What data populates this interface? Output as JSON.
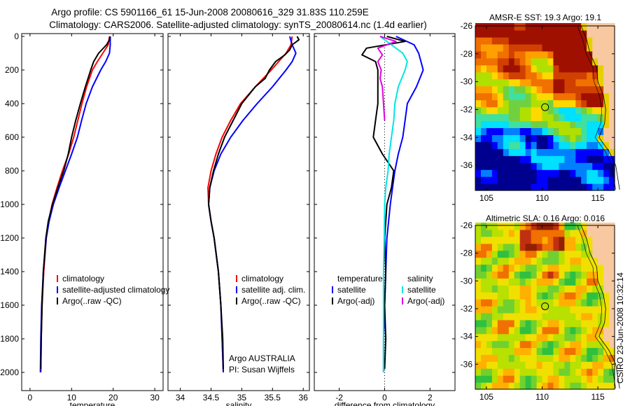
{
  "header": {
    "line1": "Argo profile: CS 5901166_61 15-Jun-2008 20080616_329 31.83S 110.259E",
    "line2": "Climatology: CARS2006. Satellite-adjusted climatology: synTS_20080614.nc (1.4d earlier)"
  },
  "credit": "CSIRO 23-Jun-2008 10:32:14",
  "colors": {
    "climatology": "#ff0000",
    "satellite": "#0000ff",
    "argo": "#000000",
    "sat_salinity": "#00e5e5",
    "argo_salinity": "#e000e0"
  },
  "chart_data": [
    {
      "type": "line",
      "xlabel": "temperature",
      "ylim": [
        2050,
        0
      ],
      "xlim": [
        -2,
        32
      ],
      "xticks": [
        0,
        10,
        20,
        30
      ],
      "yticks": [
        0,
        200,
        400,
        600,
        800,
        1000,
        1200,
        1400,
        1600,
        1800,
        2000
      ],
      "legend": [
        "climatology",
        "satellite-adjusted climatology",
        "Argo(..raw -QC)"
      ],
      "series": [
        {
          "name": "climatology",
          "color": "#ff0000",
          "depth": [
            0,
            50,
            100,
            150,
            200,
            300,
            400,
            500,
            600,
            700,
            800,
            900,
            1000,
            1100,
            1200,
            1400,
            1600,
            1800,
            2000
          ],
          "values": [
            19.1,
            18.8,
            17.5,
            16.2,
            15.0,
            13.6,
            12.5,
            11.5,
            10.5,
            9.3,
            7.8,
            6.5,
            5.3,
            4.5,
            3.9,
            3.3,
            2.9,
            2.7,
            2.6
          ]
        },
        {
          "name": "satellite-adjusted climatology",
          "color": "#0000ff",
          "depth": [
            0,
            50,
            100,
            150,
            200,
            300,
            400,
            500,
            600,
            700,
            800,
            900,
            1000,
            1100,
            1200,
            1400,
            1600,
            1800,
            2000
          ],
          "values": [
            19.3,
            19.3,
            19.1,
            18.2,
            17.0,
            15.0,
            13.5,
            12.4,
            11.4,
            10.0,
            8.5,
            7.0,
            5.6,
            4.6,
            3.9,
            3.2,
            2.8,
            2.6,
            2.5
          ]
        },
        {
          "name": "Argo(..raw -QC)",
          "color": "#000000",
          "depth": [
            0,
            20,
            50,
            100,
            150,
            200,
            300,
            400,
            500,
            600,
            700,
            800,
            900,
            1000,
            1100,
            1200,
            1400,
            1600,
            1800,
            1980
          ],
          "values": [
            19.2,
            19.1,
            18.4,
            16.5,
            15.3,
            14.6,
            13.3,
            12.1,
            11.0,
            10.0,
            9.2,
            8.1,
            6.7,
            5.4,
            4.4,
            3.8,
            3.2,
            2.9,
            2.7,
            2.6
          ]
        }
      ]
    },
    {
      "type": "line",
      "xlabel": "salinity",
      "ylim": [
        2050,
        0
      ],
      "xlim": [
        33.8,
        36.1
      ],
      "xticks": [
        34,
        34.5,
        35,
        35.5,
        36
      ],
      "legend": [
        "climatology",
        "satellite adj. clim.",
        "Argo(..raw -QC)"
      ],
      "annotation": [
        "Argo AUSTRALIA",
        "PI: Susan Wijffels"
      ],
      "series": [
        {
          "name": "climatology",
          "color": "#ff0000",
          "depth": [
            0,
            50,
            100,
            150,
            200,
            300,
            400,
            500,
            600,
            700,
            800,
            900,
            1000,
            1100,
            1200,
            1400,
            1600,
            1800,
            2000
          ],
          "values": [
            35.82,
            35.8,
            35.72,
            35.6,
            35.48,
            35.22,
            34.98,
            34.82,
            34.68,
            34.58,
            34.5,
            34.45,
            34.46,
            34.5,
            34.55,
            34.62,
            34.66,
            34.68,
            34.7
          ]
        },
        {
          "name": "satellite adj. clim.",
          "color": "#0000ff",
          "depth": [
            0,
            50,
            100,
            150,
            200,
            300,
            400,
            500,
            600,
            700,
            800,
            900,
            1000,
            1100,
            1200,
            1400,
            1600,
            1800,
            2000
          ],
          "values": [
            35.78,
            35.82,
            35.88,
            35.82,
            35.72,
            35.5,
            35.25,
            35.02,
            34.82,
            34.66,
            34.55,
            34.48,
            34.46,
            34.5,
            34.55,
            34.62,
            34.66,
            34.68,
            34.7
          ]
        },
        {
          "name": "Argo(..raw -QC)",
          "color": "#000000",
          "depth": [
            0,
            20,
            50,
            80,
            110,
            150,
            200,
            250,
            300,
            400,
            500,
            600,
            700,
            800,
            900,
            1000,
            1100,
            1200,
            1400,
            1600,
            1800,
            1980
          ],
          "values": [
            35.9,
            35.93,
            35.82,
            35.78,
            35.7,
            35.55,
            35.45,
            35.38,
            35.22,
            35.0,
            34.86,
            34.72,
            34.62,
            34.54,
            34.48,
            34.46,
            34.5,
            34.55,
            34.62,
            34.66,
            34.69,
            34.7
          ]
        }
      ]
    },
    {
      "type": "line",
      "xlabel": "difference from climatology",
      "ylim": [
        2050,
        0
      ],
      "xlim": [
        -3.1,
        3.1
      ],
      "xticks": [
        -2,
        0,
        2
      ],
      "legend_groups": [
        {
          "heading": "temperature",
          "items": [
            "satellite",
            "Argo(-adj)"
          ]
        },
        {
          "heading": "salinity",
          "items": [
            "satellite",
            "Argo(-adj)"
          ]
        }
      ],
      "series": [
        {
          "name": "satellite",
          "group": "temperature",
          "color": "#0000ff",
          "depth": [
            0,
            50,
            100,
            150,
            200,
            300,
            400,
            500,
            600,
            700,
            800,
            900,
            1000,
            1200,
            1400,
            1600,
            1800,
            2000
          ],
          "values": [
            0.5,
            1.3,
            1.5,
            1.6,
            1.7,
            1.4,
            1.0,
            0.9,
            0.8,
            0.6,
            0.45,
            0.35,
            0.25,
            0.1,
            0.05,
            0.0,
            -0.05,
            -0.05
          ]
        },
        {
          "name": "Argo(-adj)",
          "group": "temperature",
          "color": "#000000",
          "depth": [
            0,
            30,
            70,
            110,
            150,
            200,
            300,
            400,
            500,
            600,
            700,
            800,
            900,
            1000,
            1200,
            1400,
            1600,
            1800,
            1980
          ],
          "values": [
            0.1,
            0.9,
            -0.8,
            -1.0,
            -0.4,
            -0.3,
            -0.3,
            -0.3,
            -0.4,
            -0.5,
            -0.1,
            0.4,
            0.3,
            0.1,
            0.0,
            0.05,
            0.0,
            0.05,
            0.0
          ]
        },
        {
          "name": "satellite",
          "group": "salinity",
          "color": "#00e5e5",
          "depth": [
            0,
            50,
            100,
            150,
            200,
            300,
            400,
            500,
            600,
            700,
            800,
            900,
            1000,
            1200,
            1400,
            1600,
            1800,
            2000
          ],
          "values": [
            -0.2,
            0.3,
            0.8,
            1.0,
            0.9,
            0.6,
            0.45,
            0.4,
            0.3,
            0.2,
            0.15,
            0.05,
            0.0,
            -0.02,
            -0.05,
            -0.05,
            -0.05,
            -0.05
          ]
        },
        {
          "name": "Argo(-adj)",
          "group": "salinity",
          "color": "#e000e0",
          "depth": [
            0,
            30,
            70,
            110,
            150,
            200,
            250,
            300,
            400,
            500
          ],
          "values": [
            -0.2,
            0.5,
            -0.3,
            -0.1,
            -0.3,
            -0.15,
            -0.2,
            -0.1,
            -0.05,
            0.0
          ]
        }
      ]
    },
    {
      "type": "heatmap",
      "title": "AMSR-E SST: 19.3 Argo: 19.1",
      "xticks": [
        105,
        110,
        115
      ],
      "yticks": [
        -26,
        -28,
        -30,
        -32,
        -34,
        -36
      ],
      "xlim": [
        104,
        116.5
      ],
      "ylim": [
        -37.8,
        -26
      ],
      "marker": {
        "lon": 110.26,
        "lat": -31.83
      },
      "palette": [
        "#00008f",
        "#0000ff",
        "#0080ff",
        "#00e0ff",
        "#40e0a0",
        "#70d040",
        "#b0e000",
        "#ffd800",
        "#ffa000",
        "#f07000",
        "#d04000",
        "#a01000"
      ]
    },
    {
      "type": "heatmap",
      "title": "Altimetric SLA: 0.16 Argo: 0.016",
      "xticks": [
        105,
        110,
        115
      ],
      "yticks": [
        -26,
        -28,
        -30,
        -32,
        -34,
        -36
      ],
      "xlim": [
        104,
        116.5
      ],
      "ylim": [
        -37.8,
        -26
      ],
      "marker": {
        "lon": 110.26,
        "lat": -31.83
      },
      "palette": [
        "#00a030",
        "#30c040",
        "#70d030",
        "#b8e000",
        "#f0e000",
        "#ffb000",
        "#f07000",
        "#c03010",
        "#902000"
      ]
    }
  ]
}
